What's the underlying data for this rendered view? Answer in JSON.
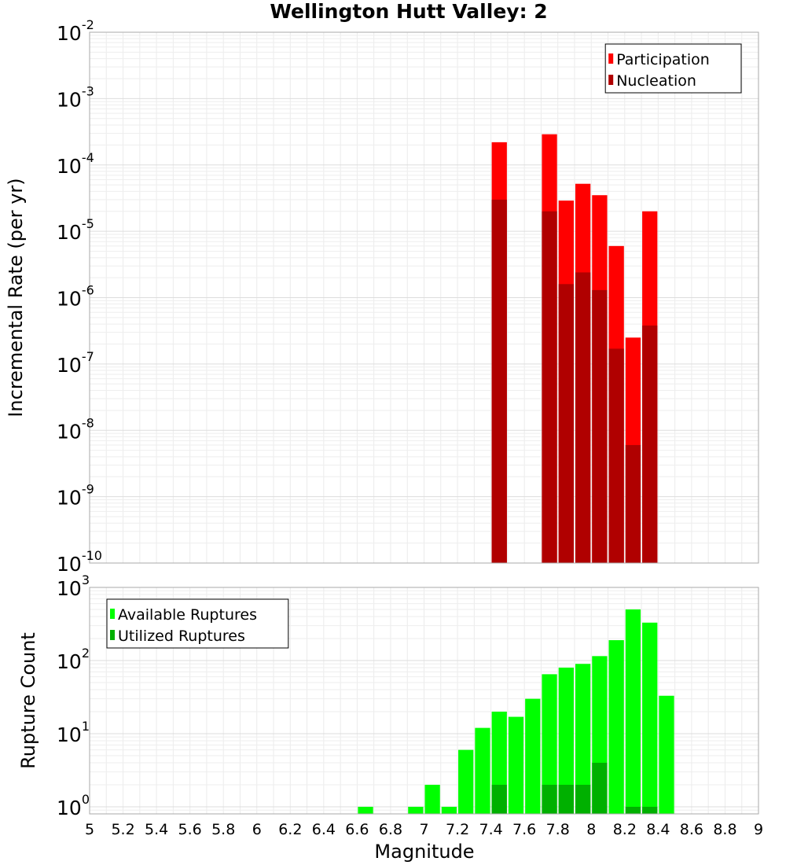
{
  "chart_data": {
    "title": "Wellington Hutt Valley: 2",
    "xlabel": "Magnitude",
    "xlim": [
      5,
      9
    ],
    "x_ticks": [
      "5",
      "5.2",
      "5.4",
      "5.6",
      "5.8",
      "6",
      "6.2",
      "6.4",
      "6.6",
      "6.8",
      "7",
      "7.2",
      "7.4",
      "7.6",
      "7.8",
      "8",
      "8.2",
      "8.4",
      "8.6",
      "8.8",
      "9"
    ],
    "bin_width": 0.1,
    "panels": [
      {
        "type": "bar",
        "ylabel": "Incremental Rate (per yr)",
        "yscale": "log",
        "ylim": [
          1e-10,
          0.01
        ],
        "y_ticks": [
          {
            "base": "10",
            "exp": "-10"
          },
          {
            "base": "10",
            "exp": "-9"
          },
          {
            "base": "10",
            "exp": "-8"
          },
          {
            "base": "10",
            "exp": "-7"
          },
          {
            "base": "10",
            "exp": "-6"
          },
          {
            "base": "10",
            "exp": "-5"
          },
          {
            "base": "10",
            "exp": "-4"
          },
          {
            "base": "10",
            "exp": "-3"
          },
          {
            "base": "10",
            "exp": "-2"
          }
        ],
        "legend_position": "top-right",
        "series": [
          {
            "name": "Participation",
            "color": "#ff0000",
            "points": [
              {
                "x": 7.45,
                "y": 0.00022
              },
              {
                "x": 7.75,
                "y": 0.00029
              },
              {
                "x": 7.85,
                "y": 2.9e-05
              },
              {
                "x": 7.95,
                "y": 5.2e-05
              },
              {
                "x": 8.05,
                "y": 3.5e-05
              },
              {
                "x": 8.15,
                "y": 6e-06
              },
              {
                "x": 8.25,
                "y": 2.5e-07
              },
              {
                "x": 8.35,
                "y": 2e-05
              }
            ]
          },
          {
            "name": "Nucleation",
            "color": "#b00000",
            "points": [
              {
                "x": 7.45,
                "y": 3e-05
              },
              {
                "x": 7.75,
                "y": 2e-05
              },
              {
                "x": 7.85,
                "y": 1.6e-06
              },
              {
                "x": 7.95,
                "y": 2.4e-06
              },
              {
                "x": 8.05,
                "y": 1.3e-06
              },
              {
                "x": 8.15,
                "y": 1.7e-07
              },
              {
                "x": 8.25,
                "y": 6e-09
              },
              {
                "x": 8.35,
                "y": 3.8e-07
              }
            ]
          }
        ]
      },
      {
        "type": "bar",
        "ylabel": "Rupture Count",
        "yscale": "log",
        "ylim": [
          0.8,
          1000
        ],
        "y_ticks": [
          {
            "base": "10",
            "exp": "0"
          },
          {
            "base": "10",
            "exp": "1"
          },
          {
            "base": "10",
            "exp": "2"
          },
          {
            "base": "10",
            "exp": "3"
          }
        ],
        "legend_position": "top-left",
        "series": [
          {
            "name": "Available Ruptures",
            "color": "#00ff00",
            "points": [
              {
                "x": 6.65,
                "y": 1
              },
              {
                "x": 6.95,
                "y": 1
              },
              {
                "x": 7.05,
                "y": 2
              },
              {
                "x": 7.15,
                "y": 1
              },
              {
                "x": 7.25,
                "y": 6
              },
              {
                "x": 7.35,
                "y": 12
              },
              {
                "x": 7.45,
                "y": 20
              },
              {
                "x": 7.55,
                "y": 17
              },
              {
                "x": 7.65,
                "y": 30
              },
              {
                "x": 7.75,
                "y": 65
              },
              {
                "x": 7.85,
                "y": 80
              },
              {
                "x": 7.95,
                "y": 90
              },
              {
                "x": 8.05,
                "y": 115
              },
              {
                "x": 8.15,
                "y": 190
              },
              {
                "x": 8.25,
                "y": 500
              },
              {
                "x": 8.35,
                "y": 330
              },
              {
                "x": 8.45,
                "y": 33
              }
            ]
          },
          {
            "name": "Utilized Ruptures",
            "color": "#00b000",
            "points": [
              {
                "x": 7.45,
                "y": 2
              },
              {
                "x": 7.75,
                "y": 2
              },
              {
                "x": 7.85,
                "y": 2
              },
              {
                "x": 7.95,
                "y": 2
              },
              {
                "x": 8.05,
                "y": 4
              },
              {
                "x": 8.25,
                "y": 1
              },
              {
                "x": 8.35,
                "y": 1
              }
            ]
          }
        ]
      }
    ]
  }
}
